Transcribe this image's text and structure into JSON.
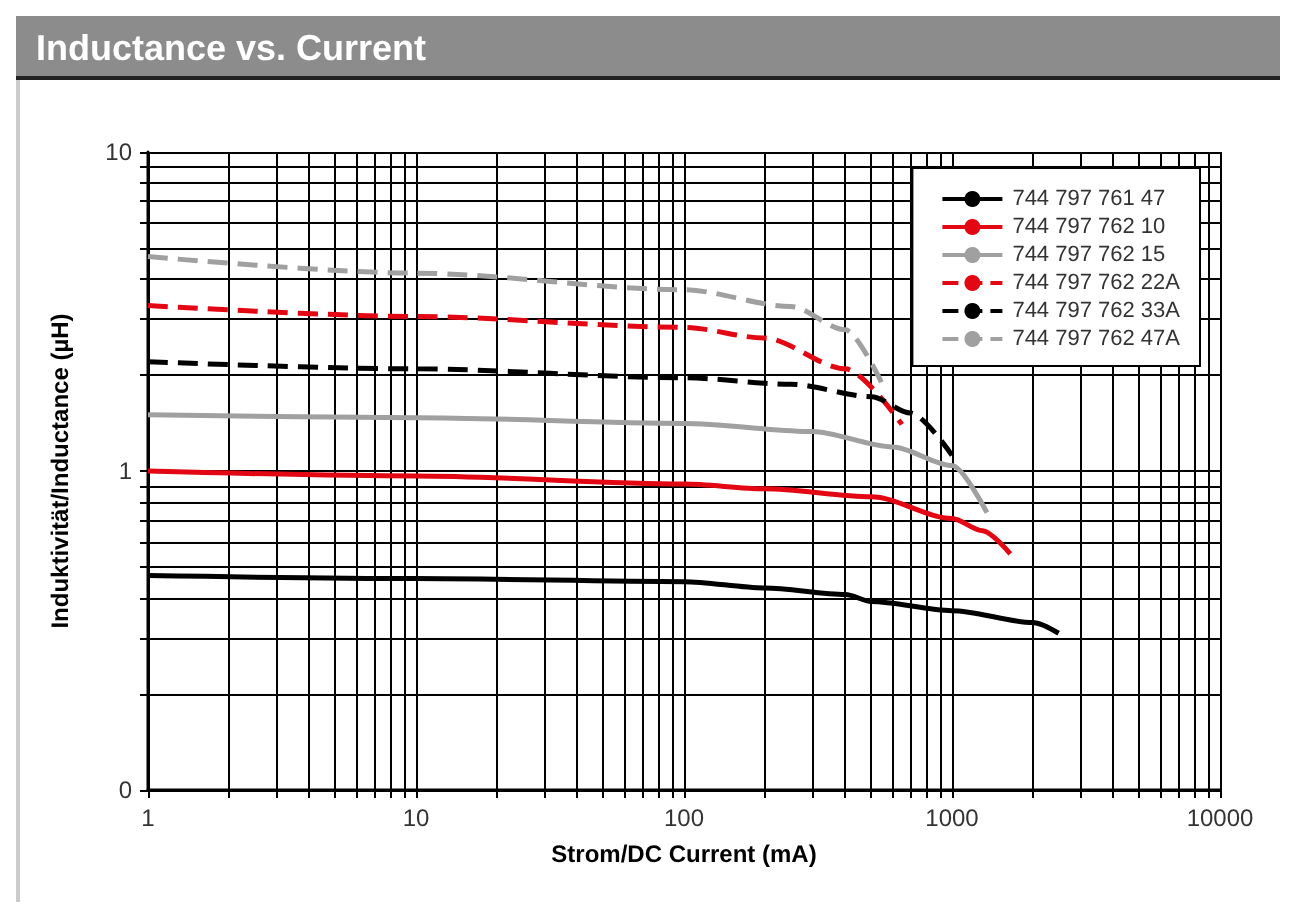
{
  "chart_data": {
    "type": "line",
    "title": "Inductance vs. Current",
    "xlabel": "Strom/DC Current (mA)",
    "ylabel": "Induktivität/Inductance (µH)",
    "log": "xy",
    "grid": true,
    "legend": "top right",
    "marker": "none",
    "xlim": [
      1,
      10000
    ],
    "ylim": [
      0.1,
      10
    ],
    "xticks": [
      1,
      {
        "value": 2,
        "label": null
      },
      {
        "value": 3,
        "label": null
      },
      {
        "value": 4,
        "label": null
      },
      {
        "value": 5,
        "label": null
      },
      {
        "value": 6,
        "label": null
      },
      {
        "value": 7,
        "label": null
      },
      {
        "value": 8,
        "label": null
      },
      {
        "value": 9,
        "label": null
      },
      10,
      {
        "value": 20,
        "label": null
      },
      {
        "value": 30,
        "label": null
      },
      {
        "value": 40,
        "label": null
      },
      {
        "value": 50,
        "label": null
      },
      {
        "value": 60,
        "label": null
      },
      {
        "value": 70,
        "label": null
      },
      {
        "value": 80,
        "label": null
      },
      {
        "value": 90,
        "label": null
      },
      100,
      {
        "value": 200,
        "label": null
      },
      {
        "value": 300,
        "label": null
      },
      {
        "value": 400,
        "label": null
      },
      {
        "value": 500,
        "label": null
      },
      {
        "value": 600,
        "label": null
      },
      {
        "value": 700,
        "label": null
      },
      {
        "value": 800,
        "label": null
      },
      {
        "value": 900,
        "label": null
      },
      1000,
      {
        "value": 2000,
        "label": null
      },
      {
        "value": 3000,
        "label": null
      },
      {
        "value": 4000,
        "label": null
      },
      {
        "value": 5000,
        "label": null
      },
      {
        "value": 6000,
        "label": null
      },
      {
        "value": 7000,
        "label": null
      },
      {
        "value": 8000,
        "label": null
      },
      {
        "value": 9000,
        "label": null
      },
      10000
    ],
    "yticks": [
      {
        "value": 0.1,
        "label": "0"
      },
      {
        "value": 0.2,
        "label": null
      },
      {
        "value": 0.3,
        "label": null
      },
      {
        "value": 0.4,
        "label": null
      },
      {
        "value": 0.5,
        "label": null
      },
      {
        "value": 0.6,
        "label": null
      },
      {
        "value": 0.7,
        "label": null
      },
      {
        "value": 0.8,
        "label": null
      },
      {
        "value": 0.9,
        "label": null
      },
      1,
      {
        "value": 2,
        "label": null
      },
      {
        "value": 3,
        "label": null
      },
      {
        "value": 4,
        "label": null
      },
      {
        "value": 5,
        "label": null
      },
      {
        "value": 6,
        "label": null
      },
      {
        "value": 7,
        "label": null
      },
      {
        "value": 8,
        "label": null
      },
      {
        "value": 9,
        "label": null
      },
      10
    ],
    "series": [
      {
        "name": "744 797 761 47",
        "color": "#000000",
        "line_style": "solid",
        "x": [
          1,
          10,
          100,
          200,
          400,
          500,
          1000,
          2000,
          2500
        ],
        "values": [
          0.47,
          0.46,
          0.45,
          0.43,
          0.41,
          0.39,
          0.365,
          0.335,
          0.31
        ]
      },
      {
        "name": "744 797 762 10",
        "color": "#e30613",
        "line_style": "solid",
        "x": [
          1,
          10,
          100,
          200,
          500,
          1000,
          1300,
          1650
        ],
        "values": [
          1.0,
          0.965,
          0.91,
          0.88,
          0.83,
          0.71,
          0.65,
          0.55
        ]
      },
      {
        "name": "744 797 762 15",
        "color": "#a0a0a0",
        "line_style": "solid",
        "x": [
          1,
          10,
          100,
          300,
          600,
          1000,
          1350
        ],
        "values": [
          1.5,
          1.47,
          1.41,
          1.33,
          1.19,
          1.04,
          0.74
        ]
      },
      {
        "name": "744 797 762 22A",
        "color": "#e30613",
        "line_style": "dashed",
        "x": [
          1,
          10,
          100,
          200,
          400,
          650
        ],
        "values": [
          3.3,
          3.05,
          2.82,
          2.61,
          2.09,
          1.4
        ]
      },
      {
        "name": "744 797 762 33A",
        "color": "#000000",
        "line_style": "dashed",
        "x": [
          1,
          10,
          100,
          250,
          500,
          700,
          1000
        ],
        "values": [
          2.2,
          2.09,
          1.96,
          1.87,
          1.71,
          1.52,
          1.12
        ]
      },
      {
        "name": "744 797 762 47A",
        "color": "#a0a0a0",
        "line_style": "dashed",
        "x": [
          1,
          10,
          100,
          250,
          400,
          550
        ],
        "values": [
          4.7,
          4.17,
          3.7,
          3.28,
          2.77,
          1.87
        ]
      }
    ]
  }
}
